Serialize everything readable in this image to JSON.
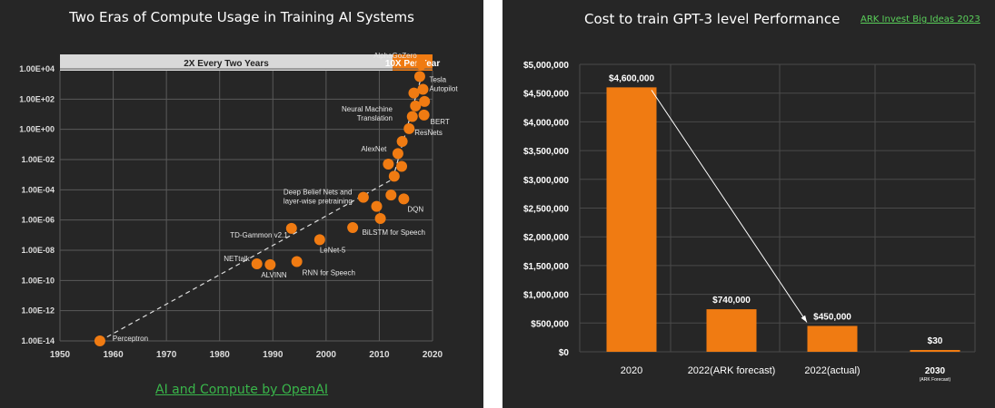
{
  "left": {
    "title": "Two Eras of Compute Usage in Training AI Systems",
    "source_link": "AI and Compute by OpenAI",
    "colors": {
      "accent": "#f07b12",
      "background": "#262626",
      "grid": "#5a5a5a"
    }
  },
  "right": {
    "title": "Cost to train GPT-3 level Performance",
    "source_link": "ARK Invest Big Ideas 2023",
    "colors": {
      "bar": "#f07b12",
      "background": "#262626",
      "grid": "#4a4a4a",
      "link": "#5ad05a"
    }
  },
  "chart_data": [
    {
      "type": "scatter",
      "title": "Two Eras of Compute Usage in Training AI Systems",
      "xlabel": "",
      "ylabel": "",
      "xlim": [
        1950,
        2020
      ],
      "ylim_log10": [
        -14,
        4
      ],
      "y_scale": "log",
      "x_ticks": [
        "1950",
        "1960",
        "1970",
        "1980",
        "1990",
        "2000",
        "2010",
        "2020"
      ],
      "y_ticks": [
        "1.00E-14",
        "1.00E-12",
        "1.00E-10",
        "1.00E-08",
        "1.00E-06",
        "1.00E-04",
        "1.00E-02",
        "1.00E+00",
        "1.00E+02",
        "1.00E+04"
      ],
      "grid": true,
      "eras": [
        {
          "label": "2X Every Two Years",
          "from": 1950,
          "to": 2012.5
        },
        {
          "label": "10X Per Year",
          "from": 2012.5,
          "to": 2020
        }
      ],
      "points": [
        {
          "x": 1957.5,
          "y": -14.0,
          "label": "Perceptron"
        },
        {
          "x": 1987.0,
          "y": -8.9,
          "label": "NETtalk"
        },
        {
          "x": 1989.5,
          "y": -8.95,
          "label": "ALVINN"
        },
        {
          "x": 1993.5,
          "y": -6.55,
          "label": "TD-Gammon v2.1"
        },
        {
          "x": 1994.5,
          "y": -8.75,
          "label": "RNN for Speech"
        },
        {
          "x": 1998.8,
          "y": -7.3,
          "label": "LeNet-5"
        },
        {
          "x": 2005.0,
          "y": -6.5,
          "label": ""
        },
        {
          "x": 2007.0,
          "y": -4.5,
          "label": "Deep Belief Nets and layer-wise pretraining"
        },
        {
          "x": 2009.5,
          "y": -5.1,
          "label": ""
        },
        {
          "x": 2010.2,
          "y": -5.9,
          "label": "BiLSTM for Speech"
        },
        {
          "x": 2011.7,
          "y": -2.3,
          "label": "AlexNet"
        },
        {
          "x": 2012.2,
          "y": -4.35,
          "label": ""
        },
        {
          "x": 2012.8,
          "y": -3.1,
          "label": ""
        },
        {
          "x": 2013.5,
          "y": -1.6,
          "label": ""
        },
        {
          "x": 2014.2,
          "y": -2.45,
          "label": ""
        },
        {
          "x": 2014.3,
          "y": -0.8,
          "label": ""
        },
        {
          "x": 2014.6,
          "y": -4.6,
          "label": "DQN"
        },
        {
          "x": 2015.6,
          "y": 0.05,
          "label": "ResNets"
        },
        {
          "x": 2016.2,
          "y": 0.85,
          "label": ""
        },
        {
          "x": 2016.5,
          "y": 2.4,
          "label": ""
        },
        {
          "x": 2016.8,
          "y": 1.55,
          "label": ""
        },
        {
          "x": 2017.6,
          "y": 3.5,
          "label": ""
        },
        {
          "x": 2018.2,
          "y": 2.65,
          "label": "Tesla Autopilot"
        },
        {
          "x": 2018.4,
          "y": 0.95,
          "label": "BERT"
        },
        {
          "x": 2018.5,
          "y": 1.85,
          "label": ""
        },
        {
          "x": 2017.9,
          "y": 4.3,
          "label": "AlphaGoZero"
        }
      ],
      "extra_annotations": [
        "Neural Machine Translation"
      ],
      "trend_lines": [
        {
          "from": [
            1957.5,
            -14.0
          ],
          "to": [
            2012.5,
            -3.3
          ]
        },
        {
          "from": [
            2012.5,
            -3.3
          ],
          "to": [
            2018,
            3.6
          ]
        }
      ]
    },
    {
      "type": "bar",
      "title": "Cost to train GPT-3 level Performance",
      "categories": [
        "2020",
        "2022(ARK forecast)",
        "2022(actual)",
        "2030"
      ],
      "category_sublabels": [
        "",
        "",
        "",
        "(ARK Forecast)"
      ],
      "values": [
        4600000,
        740000,
        450000,
        30
      ],
      "value_labels": [
        "$4,600,000",
        "$740,000",
        "$450,000",
        "$30"
      ],
      "ylim": [
        0,
        5000000
      ],
      "y_ticks": [
        "$0",
        "$500,000",
        "$1,000,000",
        "$1,500,000",
        "$2,000,000",
        "$2,500,000",
        "$3,000,000",
        "$3,500,000",
        "$4,000,000",
        "$4,500,000",
        "$5,000,000"
      ],
      "grid": true,
      "arrow": {
        "from_category": 0,
        "to_category": 2
      }
    }
  ]
}
